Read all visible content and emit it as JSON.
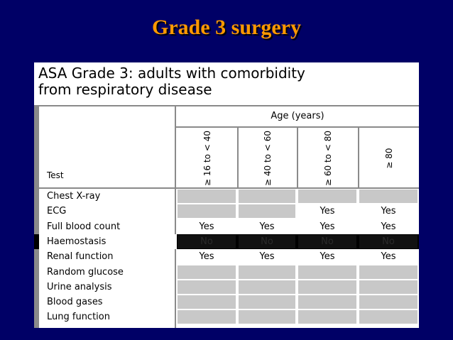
{
  "slide": {
    "title": "Grade 3 surgery"
  },
  "table": {
    "heading_line1": "ASA Grade 3: adults with comorbidity",
    "heading_line2": "from respiratory disease",
    "age_header": "Age (years)",
    "test_header": "Test",
    "columns": [
      "≥ 16 to < 40",
      "≥ 40 to < 60",
      "≥ 60 to < 80",
      "≥ 80"
    ],
    "rows": [
      {
        "name": "Chest X-ray",
        "style": "shaded",
        "cells": [
          "",
          "",
          "",
          ""
        ]
      },
      {
        "name": "ECG",
        "style": "mixed",
        "cells": [
          "",
          "",
          "Yes",
          "Yes"
        ]
      },
      {
        "name": "Full blood count",
        "style": "text",
        "cells": [
          "Yes",
          "Yes",
          "Yes",
          "Yes"
        ]
      },
      {
        "name": "Haemostasis",
        "style": "dark",
        "cells": [
          "No",
          "No",
          "No",
          "No"
        ]
      },
      {
        "name": "Renal function",
        "style": "text",
        "cells": [
          "Yes",
          "Yes",
          "Yes",
          "Yes"
        ]
      },
      {
        "name": "Random glucose",
        "style": "shaded",
        "cells": [
          "",
          "",
          "",
          ""
        ]
      },
      {
        "name": "Urine analysis",
        "style": "shaded",
        "cells": [
          "",
          "",
          "",
          ""
        ]
      },
      {
        "name": "Blood gases",
        "style": "shaded",
        "cells": [
          "",
          "",
          "",
          ""
        ]
      },
      {
        "name": "Lung function",
        "style": "shaded",
        "cells": [
          "",
          "",
          "",
          ""
        ]
      }
    ]
  }
}
